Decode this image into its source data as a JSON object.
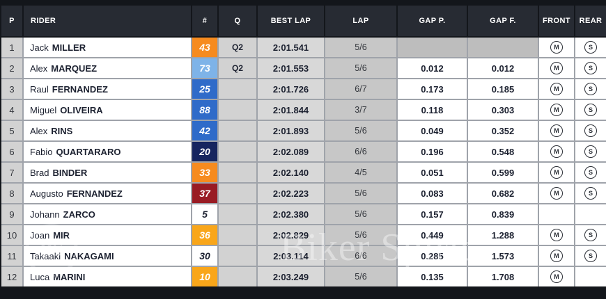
{
  "colors": {
    "page_bg": "#13161b",
    "header_bg": "#272b33",
    "header_text": "#ffffff",
    "cell_grey": "#d2d2d2",
    "cell_grey_dark": "#c7c7c7",
    "cell_white": "#ffffff",
    "empty_gap_bg": "#bdbdbd",
    "text_dark": "#1c2130"
  },
  "chart_data": {
    "type": "table",
    "columns": [
      "P",
      "RIDER",
      "#",
      "Q",
      "BEST LAP",
      "LAP",
      "GAP P.",
      "GAP F.",
      "FRONT",
      "REAR"
    ],
    "rows": [
      {
        "pos": "1",
        "first": "Jack",
        "last": "MILLER",
        "num": "43",
        "num_bg": "#f68b1f",
        "num_color": "#ffffff",
        "q": "Q2",
        "best_lap": "2:01.541",
        "lap": "5/6",
        "gap_p": "",
        "gap_f": "",
        "front": "M",
        "rear": "S"
      },
      {
        "pos": "2",
        "first": "Alex",
        "last": "MARQUEZ",
        "num": "73",
        "num_bg": "#7eb3e8",
        "num_color": "#ffffff",
        "q": "Q2",
        "best_lap": "2:01.553",
        "lap": "5/6",
        "gap_p": "0.012",
        "gap_f": "0.012",
        "front": "M",
        "rear": "S"
      },
      {
        "pos": "3",
        "first": "Raul",
        "last": "FERNANDEZ",
        "num": "25",
        "num_bg": "#2f6bc9",
        "num_color": "#ffffff",
        "q": "",
        "best_lap": "2:01.726",
        "lap": "6/7",
        "gap_p": "0.173",
        "gap_f": "0.185",
        "front": "M",
        "rear": "S"
      },
      {
        "pos": "4",
        "first": "Miguel",
        "last": "OLIVEIRA",
        "num": "88",
        "num_bg": "#2f6bc9",
        "num_color": "#ffffff",
        "q": "",
        "best_lap": "2:01.844",
        "lap": "3/7",
        "gap_p": "0.118",
        "gap_f": "0.303",
        "front": "M",
        "rear": "S"
      },
      {
        "pos": "5",
        "first": "Alex",
        "last": "RINS",
        "num": "42",
        "num_bg": "#2f6bc9",
        "num_color": "#ffffff",
        "q": "",
        "best_lap": "2:01.893",
        "lap": "5/6",
        "gap_p": "0.049",
        "gap_f": "0.352",
        "front": "M",
        "rear": "S"
      },
      {
        "pos": "6",
        "first": "Fabio",
        "last": "QUARTARARO",
        "num": "20",
        "num_bg": "#16255f",
        "num_color": "#ffffff",
        "q": "",
        "best_lap": "2:02.089",
        "lap": "6/6",
        "gap_p": "0.196",
        "gap_f": "0.548",
        "front": "M",
        "rear": "S"
      },
      {
        "pos": "7",
        "first": "Brad",
        "last": "BINDER",
        "num": "33",
        "num_bg": "#f68b1f",
        "num_color": "#ffffff",
        "q": "",
        "best_lap": "2:02.140",
        "lap": "4/5",
        "gap_p": "0.051",
        "gap_f": "0.599",
        "front": "M",
        "rear": "S"
      },
      {
        "pos": "8",
        "first": "Augusto",
        "last": "FERNANDEZ",
        "num": "37",
        "num_bg": "#991c24",
        "num_color": "#ffffff",
        "q": "",
        "best_lap": "2:02.223",
        "lap": "5/6",
        "gap_p": "0.083",
        "gap_f": "0.682",
        "front": "M",
        "rear": "S"
      },
      {
        "pos": "9",
        "first": "Johann",
        "last": "ZARCO",
        "num": "5",
        "num_bg": "#ffffff",
        "num_color": "#1c2130",
        "q": "",
        "best_lap": "2:02.380",
        "lap": "5/6",
        "gap_p": "0.157",
        "gap_f": "0.839",
        "front": "",
        "rear": ""
      },
      {
        "pos": "10",
        "first": "Joan",
        "last": "MIR",
        "num": "36",
        "num_bg": "#f9a61a",
        "num_color": "#ffffff",
        "q": "",
        "best_lap": "2:02.829",
        "lap": "5/6",
        "gap_p": "0.449",
        "gap_f": "1.288",
        "front": "M",
        "rear": "S"
      },
      {
        "pos": "11",
        "first": "Takaaki",
        "last": "NAKAGAMI",
        "num": "30",
        "num_bg": "#ffffff",
        "num_color": "#1c2130",
        "q": "",
        "best_lap": "2:03.114",
        "lap": "6/6",
        "gap_p": "0.285",
        "gap_f": "1.573",
        "front": "M",
        "rear": "S"
      },
      {
        "pos": "12",
        "first": "Luca",
        "last": "MARINI",
        "num": "10",
        "num_bg": "#f9a61a",
        "num_color": "#ffffff",
        "q": "",
        "best_lap": "2:03.249",
        "lap": "5/6",
        "gap_p": "0.135",
        "gap_f": "1.708",
        "front": "M",
        "rear": ""
      }
    ]
  },
  "watermark": {
    "text": "Biker Spirit",
    "logo": "BS"
  }
}
